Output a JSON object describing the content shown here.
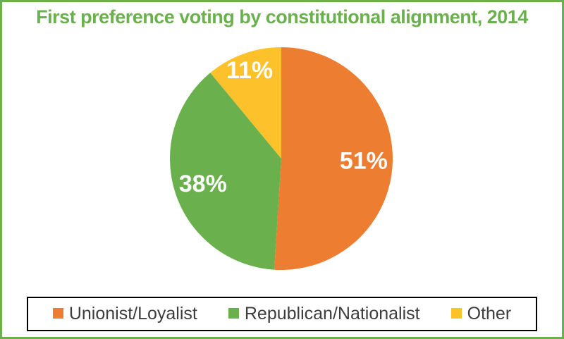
{
  "page": {
    "background": "#FFFFFF",
    "frame_border_color": "#6AB04C"
  },
  "chart_data": {
    "type": "pie",
    "title": "First preference voting by constitutional alignment, 2014",
    "title_color": "#6AB04C",
    "start_angle_deg": 0,
    "direction": "clockwise",
    "legend_position": "bottom",
    "data_label_color": "#FFFFFF",
    "slices": [
      {
        "label": "Unionist/Loyalist",
        "value": 51,
        "data_label": "51%",
        "color": "#ED7D31"
      },
      {
        "label": "Republican/Nationalist",
        "value": 38,
        "data_label": "38%",
        "color": "#6AB04C"
      },
      {
        "label": "Other",
        "value": 11,
        "data_label": "11%",
        "color": "#FDC12C"
      }
    ]
  },
  "legend": {
    "border_color": "#000000",
    "background": "#FFFFFF",
    "text_color": "#3D3D3D"
  }
}
